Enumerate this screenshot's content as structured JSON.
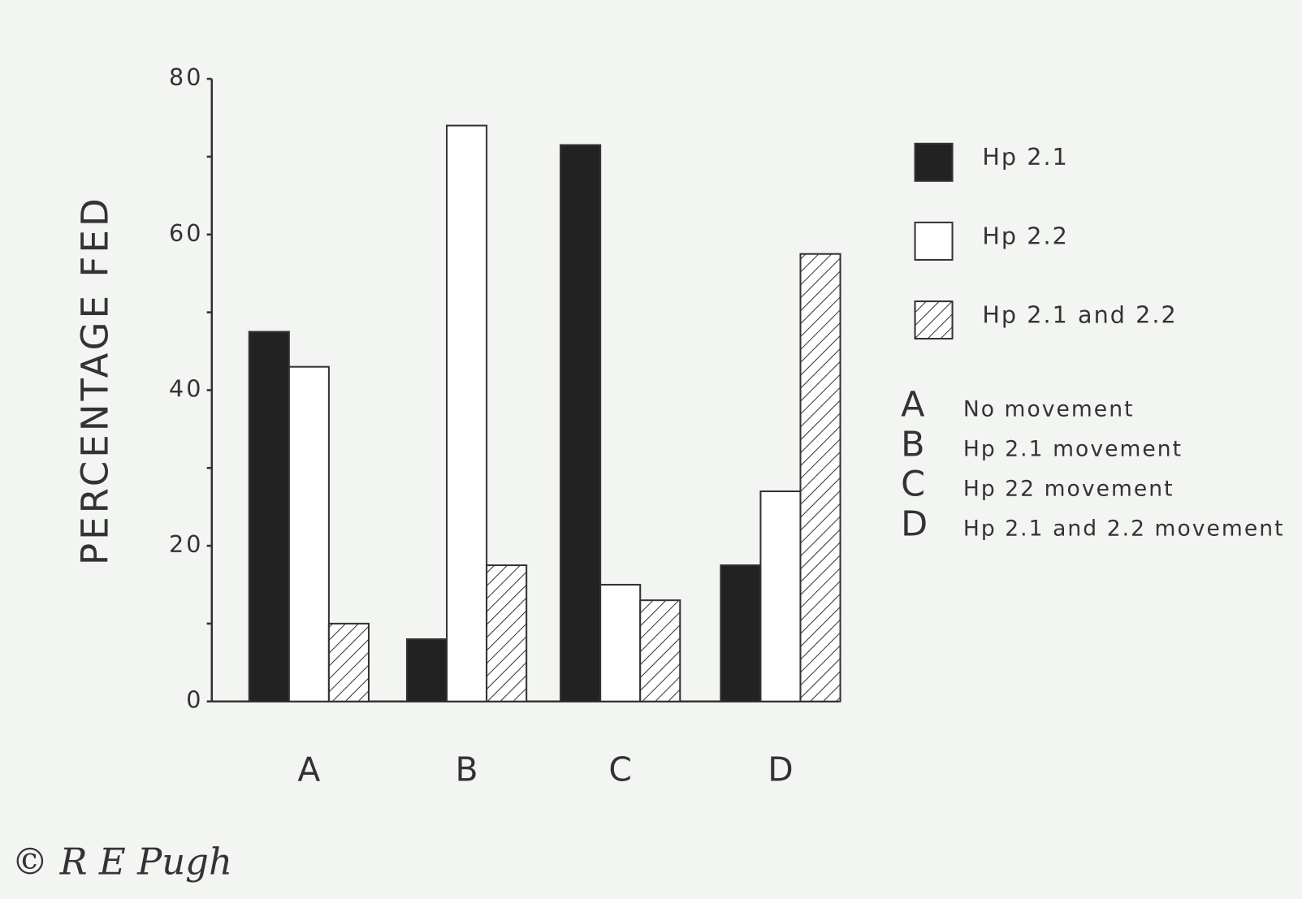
{
  "chart_data": {
    "type": "bar",
    "y_label": "PERCENTAGE FED",
    "categories": [
      "A",
      "B",
      "C",
      "D"
    ],
    "series": [
      {
        "name": "Hp 2.1",
        "color": "#222222",
        "fill": "solid",
        "values": [
          47.5,
          8,
          71.5,
          17.5
        ]
      },
      {
        "name": "Hp 2.2",
        "color": "#ffffff",
        "fill": "solid",
        "values": [
          43,
          74,
          15,
          27
        ]
      },
      {
        "name": "Hp 2.1 and 2.2",
        "color": "#ffffff",
        "fill": "hatch",
        "values": [
          10,
          17.5,
          13,
          57.5
        ]
      }
    ],
    "ylim": [
      0,
      80
    ],
    "yticks": [
      0,
      20,
      40,
      60,
      80
    ],
    "yticks_minor": [
      10,
      30,
      50,
      70
    ],
    "grid": false,
    "legend": "right",
    "key": [
      {
        "letter": "A",
        "label": "No movement"
      },
      {
        "letter": "B",
        "label": "Hp 2.1 movement"
      },
      {
        "letter": "C",
        "label": "Hp 22 movement"
      },
      {
        "letter": "D",
        "label": "Hp 2.1 and 2.2 movement"
      }
    ],
    "credit": "© R E Pugh"
  }
}
